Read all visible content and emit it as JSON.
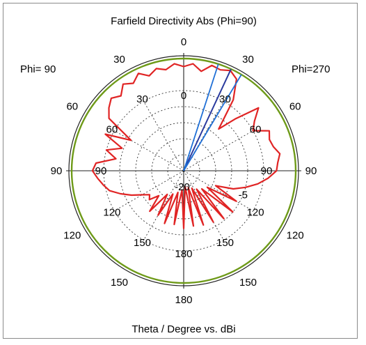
{
  "chart_data": {
    "type": "polar-line",
    "title": "Farfield Directivity Abs (Phi=90)",
    "xlabel": "Theta / Degree vs. dBi",
    "side_labels": {
      "left": "Phi= 90",
      "right": "Phi=270"
    },
    "angle_ticks_outer": [
      {
        "angle": 0,
        "label": "0"
      },
      {
        "angle": 30,
        "label": "30"
      },
      {
        "angle": 60,
        "label": "60"
      },
      {
        "angle": 90,
        "label": "90"
      },
      {
        "angle": 120,
        "label": "120"
      },
      {
        "angle": 150,
        "label": "150"
      },
      {
        "angle": 180,
        "label": "180"
      },
      {
        "angle": -150,
        "label": "150"
      },
      {
        "angle": -120,
        "label": "120"
      },
      {
        "angle": -90,
        "label": "90"
      },
      {
        "angle": -60,
        "label": "60"
      },
      {
        "angle": -30,
        "label": "30"
      }
    ],
    "angle_ticks_inner": [
      {
        "angle": 30,
        "label": "30"
      },
      {
        "angle": 60,
        "label": "60"
      },
      {
        "angle": 90,
        "label": "90"
      },
      {
        "angle": 120,
        "label": "120"
      },
      {
        "angle": 150,
        "label": "150"
      },
      {
        "angle": 180,
        "label": "180"
      },
      {
        "angle": -150,
        "label": "150"
      },
      {
        "angle": -120,
        "label": "120"
      },
      {
        "angle": -90,
        "label": "90"
      },
      {
        "angle": -60,
        "label": "60"
      },
      {
        "angle": -30,
        "label": "30"
      }
    ],
    "radial_tick_labels": [
      {
        "value": 0,
        "label": "0"
      },
      {
        "value": -5,
        "label": "-5"
      },
      {
        "value": -20,
        "label": "-20"
      }
    ],
    "r_range_dBi": [
      -25,
      10
    ],
    "grid_rings_dBi": [
      -20,
      -15,
      -10,
      -5,
      0
    ],
    "outer_ring_dBi": 10,
    "colors": {
      "pattern": "#e02424",
      "outer_ring": "#6e9a18",
      "main_lobe": "#1f6fd6",
      "beamwidth": "#2a3a9e"
    },
    "main_lobe_direction_deg": 25,
    "beamwidth_lines_deg": [
      18,
      31
    ],
    "series": [
      {
        "color": "#e02424",
        "theta_deg": [
          -95,
          -90,
          -85,
          -80,
          -75,
          -70,
          -65,
          -60,
          -55,
          -50,
          -45,
          -40,
          -35,
          -30,
          -25,
          -20,
          -15,
          -10,
          -5,
          0,
          5,
          10,
          15,
          20,
          25,
          30,
          35,
          40,
          45,
          50,
          55,
          60,
          65,
          70,
          75,
          80,
          85,
          90,
          95,
          100,
          105,
          110,
          115,
          120,
          125,
          130,
          135,
          140,
          145,
          150,
          155,
          160,
          165,
          170,
          175,
          180,
          185,
          190,
          195,
          200,
          205,
          210,
          215,
          220,
          225,
          230,
          235,
          240,
          245,
          250,
          255,
          260,
          265
        ],
        "dBi": [
          2.0,
          3.5,
          2.5,
          -3.5,
          0.0,
          -4.5,
          2.0,
          -6.0,
          3.5,
          5.5,
          7.0,
          5.5,
          8.0,
          6.5,
          8.5,
          6.5,
          8.0,
          7.0,
          8.5,
          7.5,
          8.5,
          6.5,
          9.0,
          8.5,
          9.5,
          8.0,
          2.0,
          -8.0,
          -2.0,
          5.5,
          2.0,
          0.0,
          4.5,
          3.5,
          4.0,
          5.5,
          4.5,
          4.0,
          1.5,
          -1.5,
          -5.0,
          -8.5,
          -14.0,
          -6.0,
          -16.0,
          -5.0,
          -17.0,
          -5.5,
          -18.0,
          -6.5,
          -19.0,
          -7.0,
          -19.5,
          -7.5,
          -20.0,
          -7.0,
          -19.0,
          -8.0,
          -18.0,
          -7.5,
          -17.0,
          -9.0,
          -16.0,
          -8.5,
          -14.0,
          -11.0,
          -12.0,
          -10.0,
          -7.0,
          -4.0,
          -1.0,
          0.5,
          2.0
        ]
      }
    ]
  }
}
